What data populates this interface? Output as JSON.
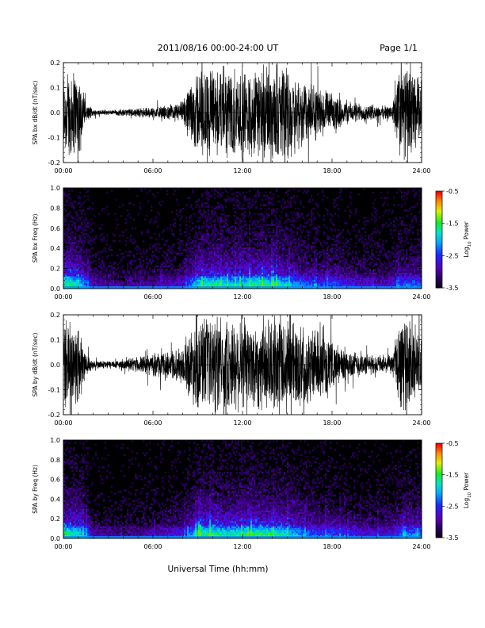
{
  "header": {
    "title": "2011/08/16  00:00-24:00 UT",
    "page": "Page 1/1"
  },
  "xaxis": {
    "label": "Universal Time (hh:mm)",
    "tick_labels": [
      "00:00",
      "06:00",
      "12:00",
      "18:00",
      "24:00"
    ]
  },
  "colorbar": {
    "label_parts": {
      "base": "Log",
      "sub": "10",
      "rest": " Power"
    },
    "tick_labels": [
      "-0.5",
      "-1.5",
      "-2.5",
      "-3.5"
    ],
    "range": [
      -3.5,
      -0.5
    ]
  },
  "chart_data": [
    {
      "type": "line",
      "title": "",
      "xlabel": "",
      "ylabel": "SPA bx dB/dt (nT/sec)",
      "xlim_hours": [
        0,
        24
      ],
      "ylim": [
        -0.2,
        0.2
      ],
      "y_tick_labels": [
        "0.2",
        "0.1",
        "0.0",
        "-0.1",
        "-0.2"
      ],
      "series": [
        {
          "values_description_free": true,
          "envelope_hours": [
            0,
            0.5,
            1,
            1.5,
            2,
            3,
            4,
            5,
            6,
            7,
            8,
            8.5,
            9,
            10,
            11,
            12,
            13,
            14,
            15,
            16,
            17,
            18,
            19,
            20,
            21,
            22,
            22.5,
            23,
            23.5,
            24
          ],
          "envelope_amplitude": [
            0.2,
            0.2,
            0.2,
            0.04,
            0.015,
            0.012,
            0.015,
            0.02,
            0.025,
            0.03,
            0.05,
            0.12,
            0.2,
            0.2,
            0.2,
            0.2,
            0.2,
            0.2,
            0.2,
            0.15,
            0.12,
            0.08,
            0.05,
            0.04,
            0.03,
            0.03,
            0.2,
            0.2,
            0.18,
            0.15
          ]
        }
      ]
    },
    {
      "type": "heatmap",
      "title": "",
      "xlabel": "",
      "ylabel": "SPA bx Freq (Hz)",
      "xlim_hours": [
        0,
        24
      ],
      "ylim": [
        0.0,
        1.0
      ],
      "y_tick_labels": [
        "1.0",
        "0.8",
        "0.6",
        "0.4",
        "0.2",
        "0.0"
      ],
      "z_label": "Log10 Power",
      "zlim": [
        -3.5,
        -0.5
      ],
      "activity_hours": [
        0,
        1,
        2,
        4,
        6,
        8,
        9,
        10,
        11,
        12,
        13,
        14,
        15,
        16,
        17,
        18,
        19,
        20,
        21,
        22,
        23,
        24
      ],
      "activity_level": [
        0.9,
        0.8,
        0.25,
        0.2,
        0.25,
        0.35,
        0.8,
        0.85,
        0.75,
        0.8,
        0.85,
        0.8,
        0.7,
        0.55,
        0.45,
        0.5,
        0.4,
        0.35,
        0.3,
        0.35,
        0.55,
        0.5
      ]
    },
    {
      "type": "line",
      "title": "",
      "xlabel": "",
      "ylabel": "SPA by dB/dt (nT/sec)",
      "xlim_hours": [
        0,
        24
      ],
      "ylim": [
        -0.2,
        0.2
      ],
      "y_tick_labels": [
        "0.2",
        "0.1",
        "0.0",
        "-0.1",
        "-0.2"
      ],
      "series": [
        {
          "envelope_hours": [
            0,
            0.5,
            1,
            1.5,
            2,
            3,
            4,
            5,
            6,
            7,
            8,
            8.5,
            9,
            10,
            11,
            12,
            13,
            14,
            15,
            16,
            17,
            18,
            19,
            20,
            21,
            22,
            22.5,
            23,
            23.5,
            24
          ],
          "envelope_amplitude": [
            0.2,
            0.2,
            0.2,
            0.05,
            0.02,
            0.018,
            0.02,
            0.035,
            0.05,
            0.06,
            0.08,
            0.15,
            0.2,
            0.2,
            0.2,
            0.2,
            0.2,
            0.2,
            0.2,
            0.18,
            0.15,
            0.1,
            0.07,
            0.05,
            0.04,
            0.04,
            0.2,
            0.2,
            0.18,
            0.15
          ]
        }
      ]
    },
    {
      "type": "heatmap",
      "title": "",
      "xlabel": "",
      "ylabel": "SPA by Freq (Hz)",
      "xlim_hours": [
        0,
        24
      ],
      "ylim": [
        0.0,
        1.0
      ],
      "y_tick_labels": [
        "1.0",
        "0.8",
        "0.6",
        "0.4",
        "0.2",
        "0.0"
      ],
      "z_label": "Log10 Power",
      "zlim": [
        -3.5,
        -0.5
      ],
      "activity_hours": [
        0,
        1,
        2,
        4,
        6,
        8,
        9,
        10,
        11,
        12,
        13,
        14,
        15,
        16,
        17,
        18,
        19,
        20,
        21,
        22,
        23,
        24
      ],
      "activity_level": [
        0.9,
        0.8,
        0.25,
        0.2,
        0.3,
        0.4,
        0.85,
        0.9,
        0.8,
        0.85,
        0.9,
        0.85,
        0.75,
        0.6,
        0.5,
        0.5,
        0.4,
        0.35,
        0.35,
        0.4,
        0.6,
        0.55
      ]
    }
  ]
}
